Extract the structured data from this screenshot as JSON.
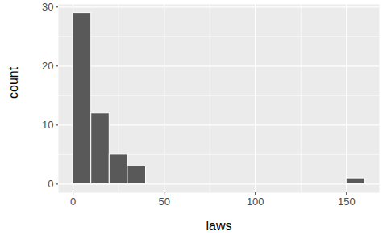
{
  "chart_data": {
    "type": "histogram",
    "x_label": "laws",
    "y_label": "count",
    "bins": [
      0,
      10,
      20,
      30,
      40,
      50,
      60,
      70,
      80,
      90,
      100,
      110,
      120,
      130,
      140,
      150,
      160
    ],
    "values": [
      29,
      12,
      5,
      3,
      0,
      0,
      0,
      0,
      0,
      0,
      0,
      0,
      0,
      0,
      0,
      1
    ],
    "color": "#595959",
    "xlim": [
      -8,
      168
    ],
    "xticks": [
      0,
      50,
      100,
      150
    ],
    "ylim": [
      -1.45,
      30.45
    ],
    "yticks": [
      0,
      10,
      20,
      30
    ],
    "grid": true
  }
}
